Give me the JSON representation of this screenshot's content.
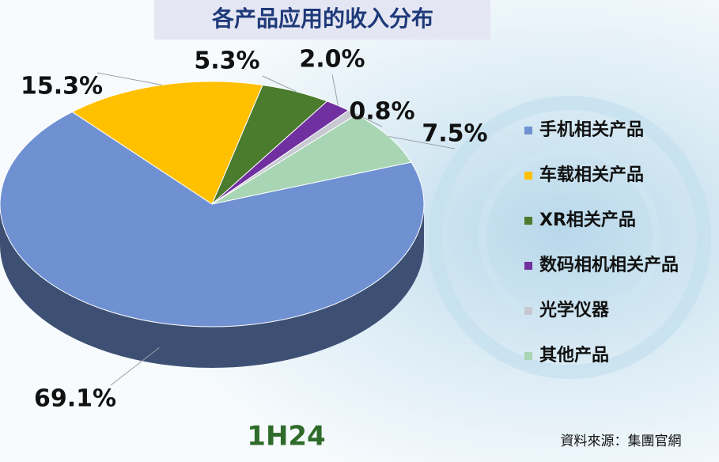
{
  "chart_data": {
    "type": "pie3d",
    "title": "各产品应用的收入分布",
    "categories": [
      "手机相关产品",
      "车载相关产品",
      "XR相关产品",
      "数码相机相关产品",
      "光学仪器",
      "其他产品"
    ],
    "values": [
      69.1,
      15.3,
      5.3,
      2.0,
      0.8,
      7.5
    ],
    "value_labels": [
      "69.1%",
      "15.3%",
      "5.3%",
      "2.0%",
      "0.8%",
      "7.5%"
    ],
    "colors": [
      "#6f91d2",
      "#ffc000",
      "#4b7b2d",
      "#7030a0",
      "#c8c8d2",
      "#a8d5b4"
    ],
    "legend": "right",
    "annotation": "1H24",
    "source": "資料來源：集團官網"
  }
}
